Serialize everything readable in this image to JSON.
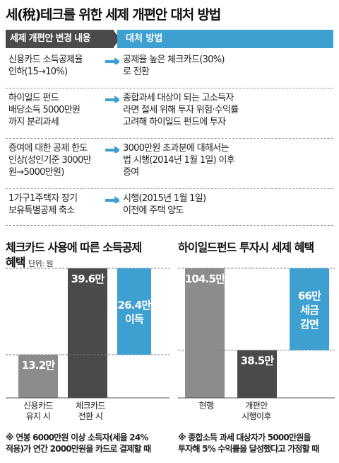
{
  "title": "세(稅)테크를 위한 세제 개편안 대처 방법",
  "table": {
    "header_left": "세제 개편안 변경 내용",
    "header_right": "대처 방법",
    "rows": [
      {
        "left": [
          "신용카드 소득공제율",
          "인하(15→10%)"
        ],
        "right": [
          "공제율 높은 체크카드(30%)",
          "로 전환"
        ]
      },
      {
        "left": [
          "하이일드 펀드",
          "배당소득 5000만원",
          "까지 분리과세"
        ],
        "right": [
          "종합과세 대상이 되는 고소득자",
          "라면 절세 위해 투자 위험·수익률",
          "고려해 하이일드 펀드에 투자"
        ]
      },
      {
        "left": [
          "증여에 대한 공제 한도",
          "인상(성인기준 3000만",
          "원→5000만원)"
        ],
        "right": [
          "3000만원 초과분에 대해서는",
          "법 시행(2014년 1월 1일) 이후",
          "증여"
        ]
      },
      {
        "left": [
          "1가구1주택자 장기",
          "보유특별공제 축소"
        ],
        "right": [
          "시행(2015년 1월 1일)",
          "이전에 주택 양도"
        ]
      }
    ]
  },
  "colors": {
    "dark_bar": "#4a4a4a",
    "mid_bar": "#8c8c8c",
    "accent": "#3e9fd1",
    "header_dark": "#4a4a4a"
  },
  "icons": [
    "arrow-right-icon"
  ],
  "chart_data": [
    {
      "type": "bar",
      "title": "체크카드 사용에 따른 소득공제 혜택",
      "unit": "단위: 원",
      "categories": [
        "신용카드 유지 시",
        "체크카드 전환 시"
      ],
      "values": [
        13.2,
        39.6
      ],
      "value_labels": [
        "13.2만",
        "39.6만"
      ],
      "difference": {
        "value": 26.4,
        "label_lines": [
          "26.4만",
          "이득"
        ]
      },
      "note_lines": [
        "※ 연봉 6000만원 이상 소득자(세율 24%",
        "적용)가 연간 2000만원을 카드로 결제할 때"
      ]
    },
    {
      "type": "bar",
      "title": "하이일드펀드 투자시 세제 혜택",
      "categories": [
        "현행",
        "개편안 시행이후"
      ],
      "values": [
        104.5,
        38.5
      ],
      "value_labels": [
        "104.5만",
        "38.5만"
      ],
      "difference": {
        "value": 66,
        "label_lines": [
          "66만",
          "세금",
          "감면"
        ]
      },
      "note_lines": [
        "※ 종합소득 과세 대상자가 5000만원을",
        "투자해 5% 수익률을 달성했다고 가정할 때"
      ]
    }
  ]
}
